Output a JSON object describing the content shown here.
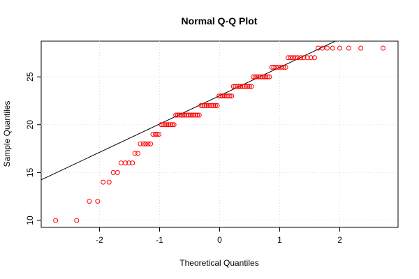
{
  "chart_data": {
    "type": "scatter",
    "title": "Normal Q-Q Plot",
    "x_label": "Theoretical Quantiles",
    "y_label": "Sample Quantiles",
    "x": [
      -2.73,
      -2.38,
      -2.17,
      -2.03,
      -1.94,
      -1.84,
      -1.77,
      -1.7,
      -1.64,
      -1.57,
      -1.51,
      -1.45,
      -1.41,
      -1.36,
      -1.32,
      -1.27,
      -1.23,
      -1.19,
      -1.15,
      -1.11,
      -1.07,
      -1.04,
      -1.01,
      -0.97,
      -0.94,
      -0.91,
      -0.88,
      -0.85,
      -0.82,
      -0.79,
      -0.76,
      -0.73,
      -0.7,
      -0.67,
      -0.64,
      -0.61,
      -0.58,
      -0.55,
      -0.52,
      -0.49,
      -0.46,
      -0.43,
      -0.4,
      -0.37,
      -0.34,
      -0.31,
      -0.28,
      -0.25,
      -0.22,
      -0.19,
      -0.16,
      -0.13,
      -0.1,
      -0.07,
      -0.04,
      -0.01,
      0.02,
      0.05,
      0.08,
      0.11,
      0.14,
      0.17,
      0.2,
      0.23,
      0.26,
      0.29,
      0.32,
      0.35,
      0.38,
      0.41,
      0.44,
      0.47,
      0.5,
      0.53,
      0.56,
      0.59,
      0.62,
      0.65,
      0.68,
      0.71,
      0.74,
      0.77,
      0.8,
      0.83,
      0.87,
      0.9,
      0.94,
      0.98,
      1.02,
      1.06,
      1.1,
      1.14,
      1.18,
      1.22,
      1.26,
      1.3,
      1.35,
      1.4,
      1.46,
      1.52,
      1.58,
      1.64,
      1.71,
      1.79,
      1.88,
      2.0,
      2.15,
      2.35,
      2.72
    ],
    "values": [
      10,
      10,
      12,
      12,
      14,
      14,
      15,
      15,
      16,
      16,
      16,
      16,
      17,
      17,
      18,
      18,
      18,
      18,
      18,
      19,
      19,
      19,
      19,
      20,
      20,
      20,
      20,
      20,
      20,
      20,
      20,
      21,
      21,
      21,
      21,
      21,
      21,
      21,
      21,
      21,
      21,
      21,
      21,
      21,
      21,
      22,
      22,
      22,
      22,
      22,
      22,
      22,
      22,
      22,
      22,
      23,
      23,
      23,
      23,
      23,
      23,
      23,
      23,
      24,
      24,
      24,
      24,
      24,
      24,
      24,
      24,
      24,
      24,
      24,
      25,
      25,
      25,
      25,
      25,
      25,
      25,
      25,
      25,
      25,
      26,
      26,
      26,
      26,
      26,
      26,
      26,
      27,
      27,
      27,
      27,
      27,
      27,
      27,
      27,
      27,
      27,
      28,
      28,
      28,
      28,
      28,
      28,
      28,
      28
    ],
    "color": "#ff0000",
    "reference_line": {
      "intercept": 23.03,
      "slope": 2.96,
      "color": "#000000"
    },
    "xlim": [
      -2.97,
      2.97
    ],
    "ylim": [
      9.27,
      28.73
    ],
    "xticks": [
      -2,
      -1,
      0,
      1,
      2
    ],
    "yticks": [
      10,
      15,
      20,
      25
    ],
    "grid": true
  }
}
